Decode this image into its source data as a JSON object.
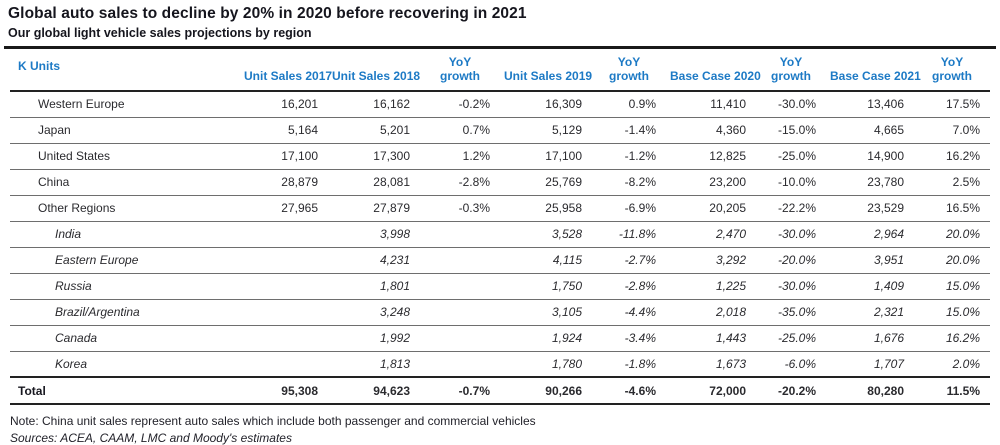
{
  "chart_data": {
    "type": "table",
    "title": "Global auto sales to decline by 20% in 2020 before recovering in 2021",
    "subtitle": "Our global light vehicle sales projections by region",
    "unit_label": "K Units",
    "accent_color": "#1d7ac5",
    "columns": [
      "Unit Sales 2017",
      "Unit Sales 2018",
      "YoY\ngrowth",
      "Unit Sales 2019",
      "YoY\ngrowth",
      "Base Case 2020",
      "YoY\ngrowth",
      "Base Case 2021",
      "YoY\ngrowth"
    ],
    "rows": [
      {
        "region": "Western Europe",
        "indent": "main",
        "values": [
          "16,201",
          "16,162",
          "-0.2%",
          "16,309",
          "0.9%",
          "11,410",
          "-30.0%",
          "13,406",
          "17.5%"
        ]
      },
      {
        "region": "Japan",
        "indent": "main",
        "values": [
          "5,164",
          "5,201",
          "0.7%",
          "5,129",
          "-1.4%",
          "4,360",
          "-15.0%",
          "4,665",
          "7.0%"
        ]
      },
      {
        "region": "United States",
        "indent": "main",
        "values": [
          "17,100",
          "17,300",
          "1.2%",
          "17,100",
          "-1.2%",
          "12,825",
          "-25.0%",
          "14,900",
          "16.2%"
        ]
      },
      {
        "region": "China",
        "indent": "main",
        "values": [
          "28,879",
          "28,081",
          "-2.8%",
          "25,769",
          "-8.2%",
          "23,200",
          "-10.0%",
          "23,780",
          "2.5%"
        ]
      },
      {
        "region": "Other Regions",
        "indent": "main",
        "values": [
          "27,965",
          "27,879",
          "-0.3%",
          "25,958",
          "-6.9%",
          "20,205",
          "-22.2%",
          "23,529",
          "16.5%"
        ]
      },
      {
        "region": "India",
        "indent": "sub",
        "values": [
          "",
          "3,998",
          "",
          "3,528",
          "-11.8%",
          "2,470",
          "-30.0%",
          "2,964",
          "20.0%"
        ]
      },
      {
        "region": "Eastern Europe",
        "indent": "sub",
        "values": [
          "",
          "4,231",
          "",
          "4,115",
          "-2.7%",
          "3,292",
          "-20.0%",
          "3,951",
          "20.0%"
        ]
      },
      {
        "region": "Russia",
        "indent": "sub",
        "values": [
          "",
          "1,801",
          "",
          "1,750",
          "-2.8%",
          "1,225",
          "-30.0%",
          "1,409",
          "15.0%"
        ]
      },
      {
        "region": "Brazil/Argentina",
        "indent": "sub",
        "values": [
          "",
          "3,248",
          "",
          "3,105",
          "-4.4%",
          "2,018",
          "-35.0%",
          "2,321",
          "15.0%"
        ]
      },
      {
        "region": "Canada",
        "indent": "sub",
        "values": [
          "",
          "1,992",
          "",
          "1,924",
          "-3.4%",
          "1,443",
          "-25.0%",
          "1,676",
          "16.2%"
        ]
      },
      {
        "region": "Korea",
        "indent": "sub",
        "values": [
          "",
          "1,813",
          "",
          "1,780",
          "-1.8%",
          "1,673",
          "-6.0%",
          "1,707",
          "2.0%"
        ]
      }
    ],
    "total": {
      "region": "Total",
      "values": [
        "95,308",
        "94,623",
        "-0.7%",
        "90,266",
        "-4.6%",
        "72,000",
        "-20.2%",
        "80,280",
        "11.5%"
      ]
    },
    "note": "Note: China unit sales represent auto sales which include both passenger and commercial vehicles",
    "sources": "Sources: ACEA, CAAM, LMC and Moody's estimates"
  }
}
